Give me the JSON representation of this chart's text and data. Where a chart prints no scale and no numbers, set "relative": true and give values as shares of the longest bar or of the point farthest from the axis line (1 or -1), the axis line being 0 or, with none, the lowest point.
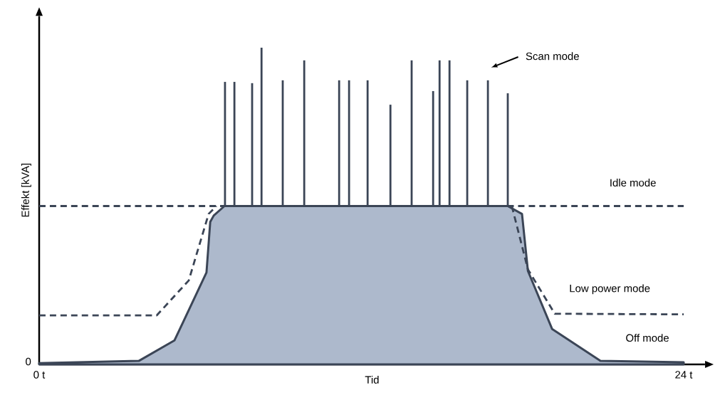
{
  "chart_data": {
    "type": "line",
    "relative": true,
    "xlabel": "Tid",
    "ylabel": "Effekt [kVA]",
    "xlim": [
      0,
      24
    ],
    "xticks": [
      {
        "value": 0,
        "label": "0 t"
      },
      {
        "value": 24,
        "label": "24 t"
      }
    ],
    "series": [
      {
        "type": "area",
        "color": "#3b4556",
        "line_style": "solid",
        "x": [
          0,
          3.71,
          5.04,
          6.23,
          6.37,
          6.5,
          6.9,
          17.45,
          17.98,
          18.2,
          19.1,
          20.9,
          24
        ],
        "values": [
          0.004,
          0.011,
          0.076,
          0.29,
          0.45,
          0.47,
          0.5,
          0.5,
          0.475,
          0.295,
          0.112,
          0.011,
          0.007
        ]
      },
      {
        "color": "#3b4556",
        "line_style": "dashed",
        "x": [
          0,
          24
        ],
        "values": [
          0.5,
          0.5
        ]
      },
      {
        "color": "#3b4556",
        "line_style": "dashed",
        "x": [
          0,
          4.38,
          5.57,
          6.31,
          6.6
        ],
        "values": [
          0.155,
          0.155,
          0.265,
          0.475,
          0.5
        ]
      },
      {
        "color": "#3b4556",
        "line_style": "dashed",
        "x": [
          17.6,
          18.2,
          19.2,
          24
        ],
        "values": [
          0.5,
          0.3,
          0.16,
          0.158
        ]
      },
      {
        "color": "#3b4556",
        "x": [
          6.92,
          6.92
        ],
        "values": [
          0.5,
          0.892
        ]
      },
      {
        "color": "#3b4556",
        "x": [
          7.27,
          7.27
        ],
        "values": [
          0.5,
          0.892
        ]
      },
      {
        "color": "#3b4556",
        "x": [
          7.93,
          7.93
        ],
        "values": [
          0.5,
          0.888
        ]
      },
      {
        "color": "#3b4556",
        "x": [
          8.28,
          8.28
        ],
        "values": [
          0.5,
          1.0
        ]
      },
      {
        "color": "#3b4556",
        "x": [
          9.07,
          9.07
        ],
        "values": [
          0.5,
          0.897
        ]
      },
      {
        "color": "#3b4556",
        "x": [
          9.87,
          9.87
        ],
        "values": [
          0.5,
          0.96
        ]
      },
      {
        "color": "#3b4556",
        "x": [
          11.17,
          11.17
        ],
        "values": [
          0.5,
          0.897
        ]
      },
      {
        "color": "#3b4556",
        "x": [
          11.54,
          11.54
        ],
        "values": [
          0.5,
          0.897
        ]
      },
      {
        "color": "#3b4556",
        "x": [
          12.23,
          12.23
        ],
        "values": [
          0.5,
          0.897
        ]
      },
      {
        "color": "#3b4556",
        "x": [
          13.08,
          13.08
        ],
        "values": [
          0.5,
          0.82
        ]
      },
      {
        "color": "#3b4556",
        "x": [
          13.87,
          13.87
        ],
        "values": [
          0.5,
          0.96
        ]
      },
      {
        "color": "#3b4556",
        "x": [
          14.67,
          14.67
        ],
        "values": [
          0.5,
          0.863
        ]
      },
      {
        "color": "#3b4556",
        "x": [
          14.91,
          14.91
        ],
        "values": [
          0.5,
          0.96
        ]
      },
      {
        "color": "#3b4556",
        "x": [
          15.28,
          15.28
        ],
        "values": [
          0.5,
          0.96
        ]
      },
      {
        "color": "#3b4556",
        "x": [
          15.94,
          15.94
        ],
        "values": [
          0.5,
          0.897
        ]
      },
      {
        "color": "#3b4556",
        "x": [
          16.71,
          16.71
        ],
        "values": [
          0.5,
          0.897
        ]
      },
      {
        "color": "#3b4556",
        "x": [
          17.45,
          17.45
        ],
        "values": [
          0.5,
          0.856
        ]
      }
    ],
    "annotations": [
      "0",
      "Scan mode",
      "Idle mode",
      "Low power mode",
      "Off mode"
    ]
  }
}
